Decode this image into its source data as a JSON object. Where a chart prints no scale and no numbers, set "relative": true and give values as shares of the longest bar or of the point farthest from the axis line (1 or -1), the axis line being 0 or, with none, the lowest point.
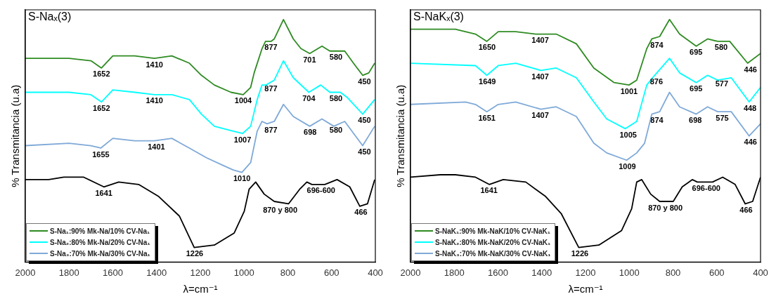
{
  "chart_data": [
    {
      "type": "line",
      "title": "S-Naₓ(3)",
      "xlabel": "λ=cm⁻¹",
      "ylabel": "% Transmitancia (u.a)",
      "relative": true,
      "xlim": [
        2000,
        400
      ],
      "xticks": [
        2000,
        1800,
        1600,
        1400,
        1200,
        1000,
        800,
        600,
        400
      ],
      "legend": "bottom left",
      "series": [
        {
          "name": "S-Na₁:90% Mk-Na/10% CV-Na₁",
          "color": "#2e8b22",
          "x": [
            2000,
            1800,
            1700,
            1652,
            1600,
            1500,
            1410,
            1330,
            1250,
            1195,
            1136,
            1060,
            1004,
            970,
            954,
            918,
            902,
            877,
            862,
            820,
            775,
            740,
            700,
            644,
            608,
            540,
            500,
            458,
            430,
            403
          ],
          "values": [
            0.84,
            0.84,
            0.83,
            0.8,
            0.85,
            0.85,
            0.84,
            0.85,
            0.82,
            0.77,
            0.73,
            0.7,
            0.69,
            0.72,
            0.78,
            0.88,
            0.91,
            0.91,
            0.92,
            1.0,
            0.92,
            0.88,
            0.86,
            0.89,
            0.87,
            0.87,
            0.82,
            0.77,
            0.78,
            0.82
          ]
        },
        {
          "name": "S-Na₂:80% Mk-Na/20% CV-Na₁",
          "color": "#00ffff",
          "x": [
            2000,
            1800,
            1700,
            1652,
            1600,
            1500,
            1410,
            1330,
            1250,
            1195,
            1136,
            1050,
            1007,
            970,
            940,
            918,
            900,
            862,
            820,
            775,
            704,
            650,
            608,
            560,
            530,
            458,
            403
          ],
          "values": [
            0.7,
            0.7,
            0.69,
            0.66,
            0.71,
            0.7,
            0.69,
            0.69,
            0.67,
            0.61,
            0.56,
            0.54,
            0.53,
            0.56,
            0.67,
            0.73,
            0.73,
            0.75,
            0.83,
            0.76,
            0.7,
            0.73,
            0.7,
            0.7,
            0.68,
            0.61,
            0.67
          ]
        },
        {
          "name": "S-Na₃:70% Mk-Na/30% CV-Na₁",
          "color": "#7fa9d8",
          "x": [
            2000,
            1800,
            1700,
            1655,
            1600,
            1500,
            1410,
            1330,
            1250,
            1172,
            1100,
            1050,
            1010,
            970,
            940,
            918,
            895,
            862,
            820,
            775,
            700,
            644,
            590,
            540,
            458,
            403
          ],
          "values": [
            0.48,
            0.49,
            0.48,
            0.47,
            0.51,
            0.5,
            0.5,
            0.51,
            0.47,
            0.43,
            0.4,
            0.38,
            0.37,
            0.41,
            0.54,
            0.58,
            0.57,
            0.58,
            0.65,
            0.6,
            0.56,
            0.59,
            0.56,
            0.58,
            0.48,
            0.56
          ]
        },
        {
          "color": "#000000",
          "x": [
            2000,
            1893,
            1824,
            1733,
            1641,
            1573,
            1482,
            1390,
            1296,
            1228,
            1136,
            1045,
            999,
            977,
            947,
            908,
            862,
            797,
            746,
            713,
            690,
            631,
            575,
            517,
            471,
            436,
            403
          ],
          "values": [
            0.34,
            0.34,
            0.35,
            0.35,
            0.31,
            0.33,
            0.32,
            0.27,
            0.19,
            0.06,
            0.07,
            0.12,
            0.21,
            0.3,
            0.33,
            0.28,
            0.25,
            0.24,
            0.3,
            0.33,
            0.32,
            0.32,
            0.34,
            0.31,
            0.23,
            0.24,
            0.34
          ]
        }
      ],
      "annotations": [
        {
          "text": "1652",
          "x": 1652,
          "y": 0.8
        },
        {
          "text": "1410",
          "x": 1410,
          "y": 0.84
        },
        {
          "text": "1004",
          "x": 1004,
          "y": 0.69
        },
        {
          "text": "877",
          "x": 877,
          "y": 0.91
        },
        {
          "text": "701",
          "x": 701,
          "y": 0.86
        },
        {
          "text": "580",
          "x": 580,
          "y": 0.87
        },
        {
          "text": "450",
          "x": 450,
          "y": 0.77
        },
        {
          "text": "1652",
          "x": 1652,
          "y": 0.66
        },
        {
          "text": "1410",
          "x": 1410,
          "y": 0.69
        },
        {
          "text": "1007",
          "x": 1007,
          "y": 0.53
        },
        {
          "text": "877",
          "x": 877,
          "y": 0.74
        },
        {
          "text": "704",
          "x": 704,
          "y": 0.7
        },
        {
          "text": "580",
          "x": 580,
          "y": 0.7
        },
        {
          "text": "450",
          "x": 450,
          "y": 0.61
        },
        {
          "text": "1655",
          "x": 1655,
          "y": 0.47
        },
        {
          "text": "1401",
          "x": 1401,
          "y": 0.5
        },
        {
          "text": "1010",
          "x": 1010,
          "y": 0.37
        },
        {
          "text": "877",
          "x": 877,
          "y": 0.57
        },
        {
          "text": "698",
          "x": 698,
          "y": 0.56
        },
        {
          "text": "580",
          "x": 580,
          "y": 0.57
        },
        {
          "text": "450",
          "x": 450,
          "y": 0.48
        },
        {
          "text": "1641",
          "x": 1641,
          "y": 0.31
        },
        {
          "text": "1226",
          "x": 1226,
          "y": 0.06
        },
        {
          "text": "870 y 800",
          "x": 835,
          "y": 0.24
        },
        {
          "text": "696-600",
          "x": 648,
          "y": 0.32
        },
        {
          "text": "466",
          "x": 466,
          "y": 0.23
        }
      ]
    },
    {
      "type": "line",
      "title": "S-NaKₓ(3)",
      "xlabel": "λ=cm⁻¹",
      "ylabel": "% Transmitancia (u.a)",
      "relative": true,
      "xlim": [
        2000,
        400
      ],
      "xticks": [
        2000,
        1800,
        1600,
        1400,
        1200,
        1000,
        800,
        600,
        400
      ],
      "legend": "bottom left",
      "series": [
        {
          "name": "S-NaK₁:90% Mk-NaK/10% CV-NaK₁",
          "color": "#2e8b22",
          "x": [
            2000,
            1795,
            1703,
            1651,
            1599,
            1519,
            1427,
            1334,
            1242,
            1162,
            1069,
            1001,
            966,
            920,
            897,
            861,
            816,
            770,
            694,
            642,
            596,
            541,
            459,
            400
          ],
          "values": [
            0.96,
            0.96,
            0.94,
            0.91,
            0.95,
            0.95,
            0.94,
            0.94,
            0.9,
            0.8,
            0.74,
            0.73,
            0.75,
            0.88,
            0.92,
            0.93,
            1.0,
            0.94,
            0.89,
            0.92,
            0.91,
            0.91,
            0.82,
            0.86
          ]
        },
        {
          "name": "S-NaK₂:80% Mk-NaK/20% CV-NaK₁",
          "color": "#00ffff",
          "x": [
            2000,
            1703,
            1651,
            1599,
            1519,
            1404,
            1334,
            1242,
            1162,
            1103,
            1018,
            966,
            920,
            884,
            816,
            770,
            694,
            642,
            596,
            534,
            452,
            400
          ],
          "values": [
            0.82,
            0.81,
            0.77,
            0.81,
            0.82,
            0.79,
            0.8,
            0.76,
            0.66,
            0.59,
            0.55,
            0.58,
            0.73,
            0.77,
            0.84,
            0.78,
            0.74,
            0.77,
            0.75,
            0.76,
            0.66,
            0.72
          ]
        },
        {
          "name": "S-NaK₃:70% Mk-NaK/30% CV-NaK₁",
          "color": "#7fa9d8",
          "x": [
            2000,
            1748,
            1703,
            1651,
            1599,
            1519,
            1404,
            1334,
            1242,
            1162,
            1103,
            1012,
            966,
            930,
            897,
            861,
            816,
            770,
            694,
            642,
            596,
            534,
            452,
            400
          ],
          "values": [
            0.65,
            0.66,
            0.65,
            0.62,
            0.65,
            0.66,
            0.63,
            0.64,
            0.6,
            0.49,
            0.45,
            0.42,
            0.45,
            0.49,
            0.61,
            0.62,
            0.7,
            0.64,
            0.61,
            0.64,
            0.62,
            0.62,
            0.52,
            0.57
          ]
        },
        {
          "color": "#000000",
          "x": [
            2000,
            1864,
            1795,
            1703,
            1640,
            1576,
            1473,
            1382,
            1311,
            1231,
            1139,
            1035,
            989,
            966,
            943,
            902,
            861,
            799,
            758,
            712,
            689,
            619,
            573,
            516,
            470,
            436,
            400
          ],
          "values": [
            0.35,
            0.36,
            0.36,
            0.35,
            0.32,
            0.34,
            0.33,
            0.27,
            0.2,
            0.06,
            0.07,
            0.13,
            0.22,
            0.33,
            0.34,
            0.28,
            0.25,
            0.25,
            0.31,
            0.34,
            0.33,
            0.33,
            0.35,
            0.32,
            0.24,
            0.25,
            0.35
          ]
        }
      ],
      "annotations": [
        {
          "text": "1650",
          "x": 1650,
          "y": 0.91
        },
        {
          "text": "1407",
          "x": 1407,
          "y": 0.94
        },
        {
          "text": "1001",
          "x": 1001,
          "y": 0.73
        },
        {
          "text": "874",
          "x": 874,
          "y": 0.92
        },
        {
          "text": "695",
          "x": 695,
          "y": 0.89
        },
        {
          "text": "580",
          "x": 580,
          "y": 0.91
        },
        {
          "text": "446",
          "x": 446,
          "y": 0.82
        },
        {
          "text": "1649",
          "x": 1649,
          "y": 0.77
        },
        {
          "text": "1407",
          "x": 1407,
          "y": 0.79
        },
        {
          "text": "1005",
          "x": 1005,
          "y": 0.55
        },
        {
          "text": "876",
          "x": 876,
          "y": 0.77
        },
        {
          "text": "695",
          "x": 695,
          "y": 0.74
        },
        {
          "text": "577",
          "x": 577,
          "y": 0.76
        },
        {
          "text": "448",
          "x": 448,
          "y": 0.66
        },
        {
          "text": "1651",
          "x": 1651,
          "y": 0.62
        },
        {
          "text": "1407",
          "x": 1407,
          "y": 0.63
        },
        {
          "text": "1009",
          "x": 1009,
          "y": 0.42
        },
        {
          "text": "874",
          "x": 874,
          "y": 0.61
        },
        {
          "text": "698",
          "x": 698,
          "y": 0.61
        },
        {
          "text": "575",
          "x": 575,
          "y": 0.62
        },
        {
          "text": "446",
          "x": 446,
          "y": 0.52
        },
        {
          "text": "1641",
          "x": 1641,
          "y": 0.32
        },
        {
          "text": "1226",
          "x": 1226,
          "y": 0.06
        },
        {
          "text": "870 y 800",
          "x": 835,
          "y": 0.25
        },
        {
          "text": "696-600",
          "x": 648,
          "y": 0.33
        },
        {
          "text": "466",
          "x": 466,
          "y": 0.24
        }
      ]
    }
  ]
}
